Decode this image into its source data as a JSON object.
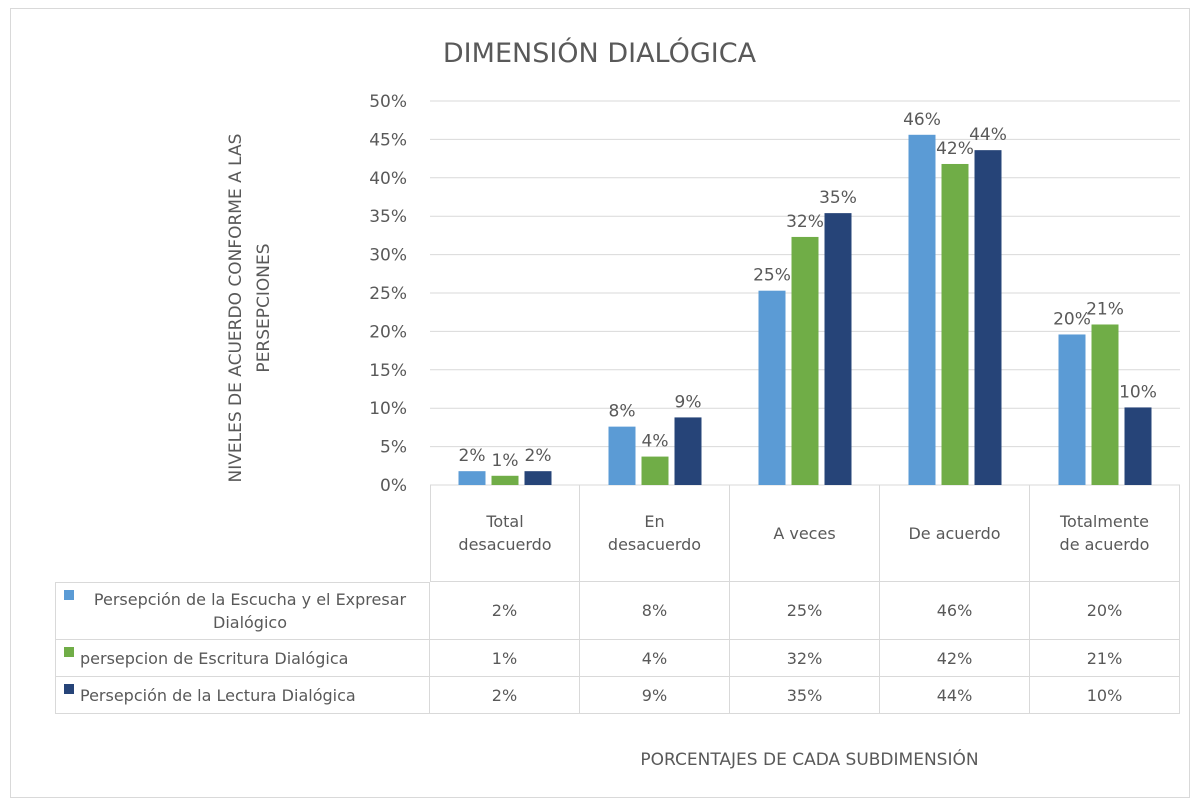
{
  "chart_data": {
    "type": "bar",
    "title": "DIMENSIÓN DIALÓGICA",
    "y_label": "NIVELES DE ACUERDO CONFORME A LAS PERSEPCIONES",
    "x_label": "PORCENTAJES DE CADA SUBDIMENSIÓN",
    "categories": [
      "Total desacuerdo",
      "En desacuerdo",
      "A veces",
      "De acuerdo",
      "Totalmente de acuerdo"
    ],
    "series": [
      {
        "name": "Persepción de la Escucha y el Expresar Dialógico",
        "color": "#5b9bd5",
        "values": [
          1.8,
          7.6,
          25.3,
          45.6,
          19.6
        ],
        "value_labels": [
          "2%",
          "8%",
          "25%",
          "46%",
          "20%"
        ]
      },
      {
        "name": "persepcion de Escritura Dialógica",
        "color": "#70ad47",
        "values": [
          1.2,
          3.7,
          32.3,
          41.8,
          20.9
        ],
        "value_labels": [
          "1%",
          "4%",
          "32%",
          "42%",
          "21%"
        ]
      },
      {
        "name": "Persepción de la Lectura Dialógica",
        "color": "#264478",
        "values": [
          1.8,
          8.8,
          35.4,
          43.6,
          10.1
        ],
        "value_labels": [
          "2%",
          "9%",
          "35%",
          "44%",
          "10%"
        ]
      }
    ],
    "ylim": [
      0,
      50
    ],
    "yticks": [
      {
        "value": 0,
        "label": "0%"
      },
      {
        "value": 5,
        "label": "5%"
      },
      {
        "value": 10,
        "label": "10%"
      },
      {
        "value": 15,
        "label": "15%"
      },
      {
        "value": 20,
        "label": "20%"
      },
      {
        "value": 25,
        "label": "25%"
      },
      {
        "value": 30,
        "label": "30%"
      },
      {
        "value": 35,
        "label": "35%"
      },
      {
        "value": 40,
        "label": "40%"
      },
      {
        "value": 45,
        "label": "45%"
      },
      {
        "value": 50,
        "label": "50%"
      }
    ],
    "grid": true
  }
}
